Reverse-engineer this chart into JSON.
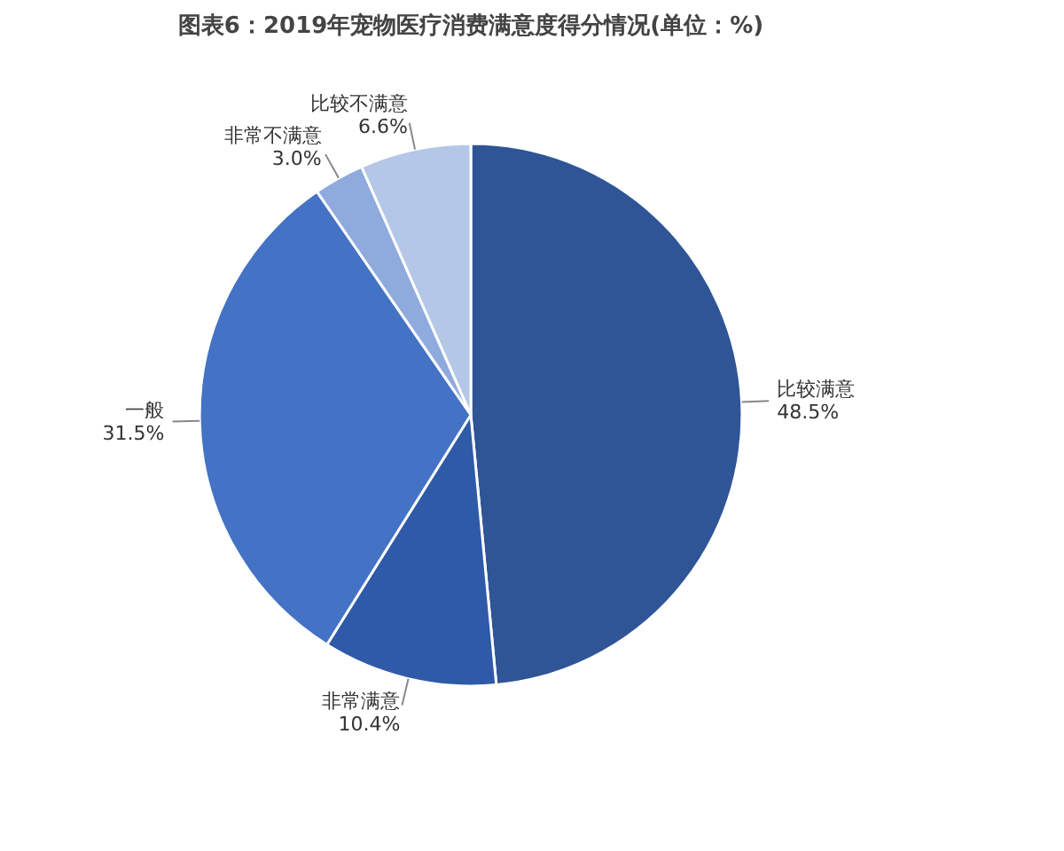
{
  "chart_data": {
    "type": "pie",
    "title": "图表6：2019年宠物医疗消费满意度得分情况(单位：%)",
    "categories": [
      "比较满意",
      "非常满意",
      "一般",
      "非常不满意",
      "比较不满意"
    ],
    "values": [
      48.5,
      10.4,
      31.5,
      3.0,
      6.6
    ],
    "colors": [
      "#2f5597",
      "#2e5aa8",
      "#4472c4",
      "#8faadc",
      "#b4c7e7"
    ],
    "value_labels": [
      "48.5%",
      "10.4%",
      "31.5%",
      "3.0%",
      "6.6%"
    ]
  }
}
